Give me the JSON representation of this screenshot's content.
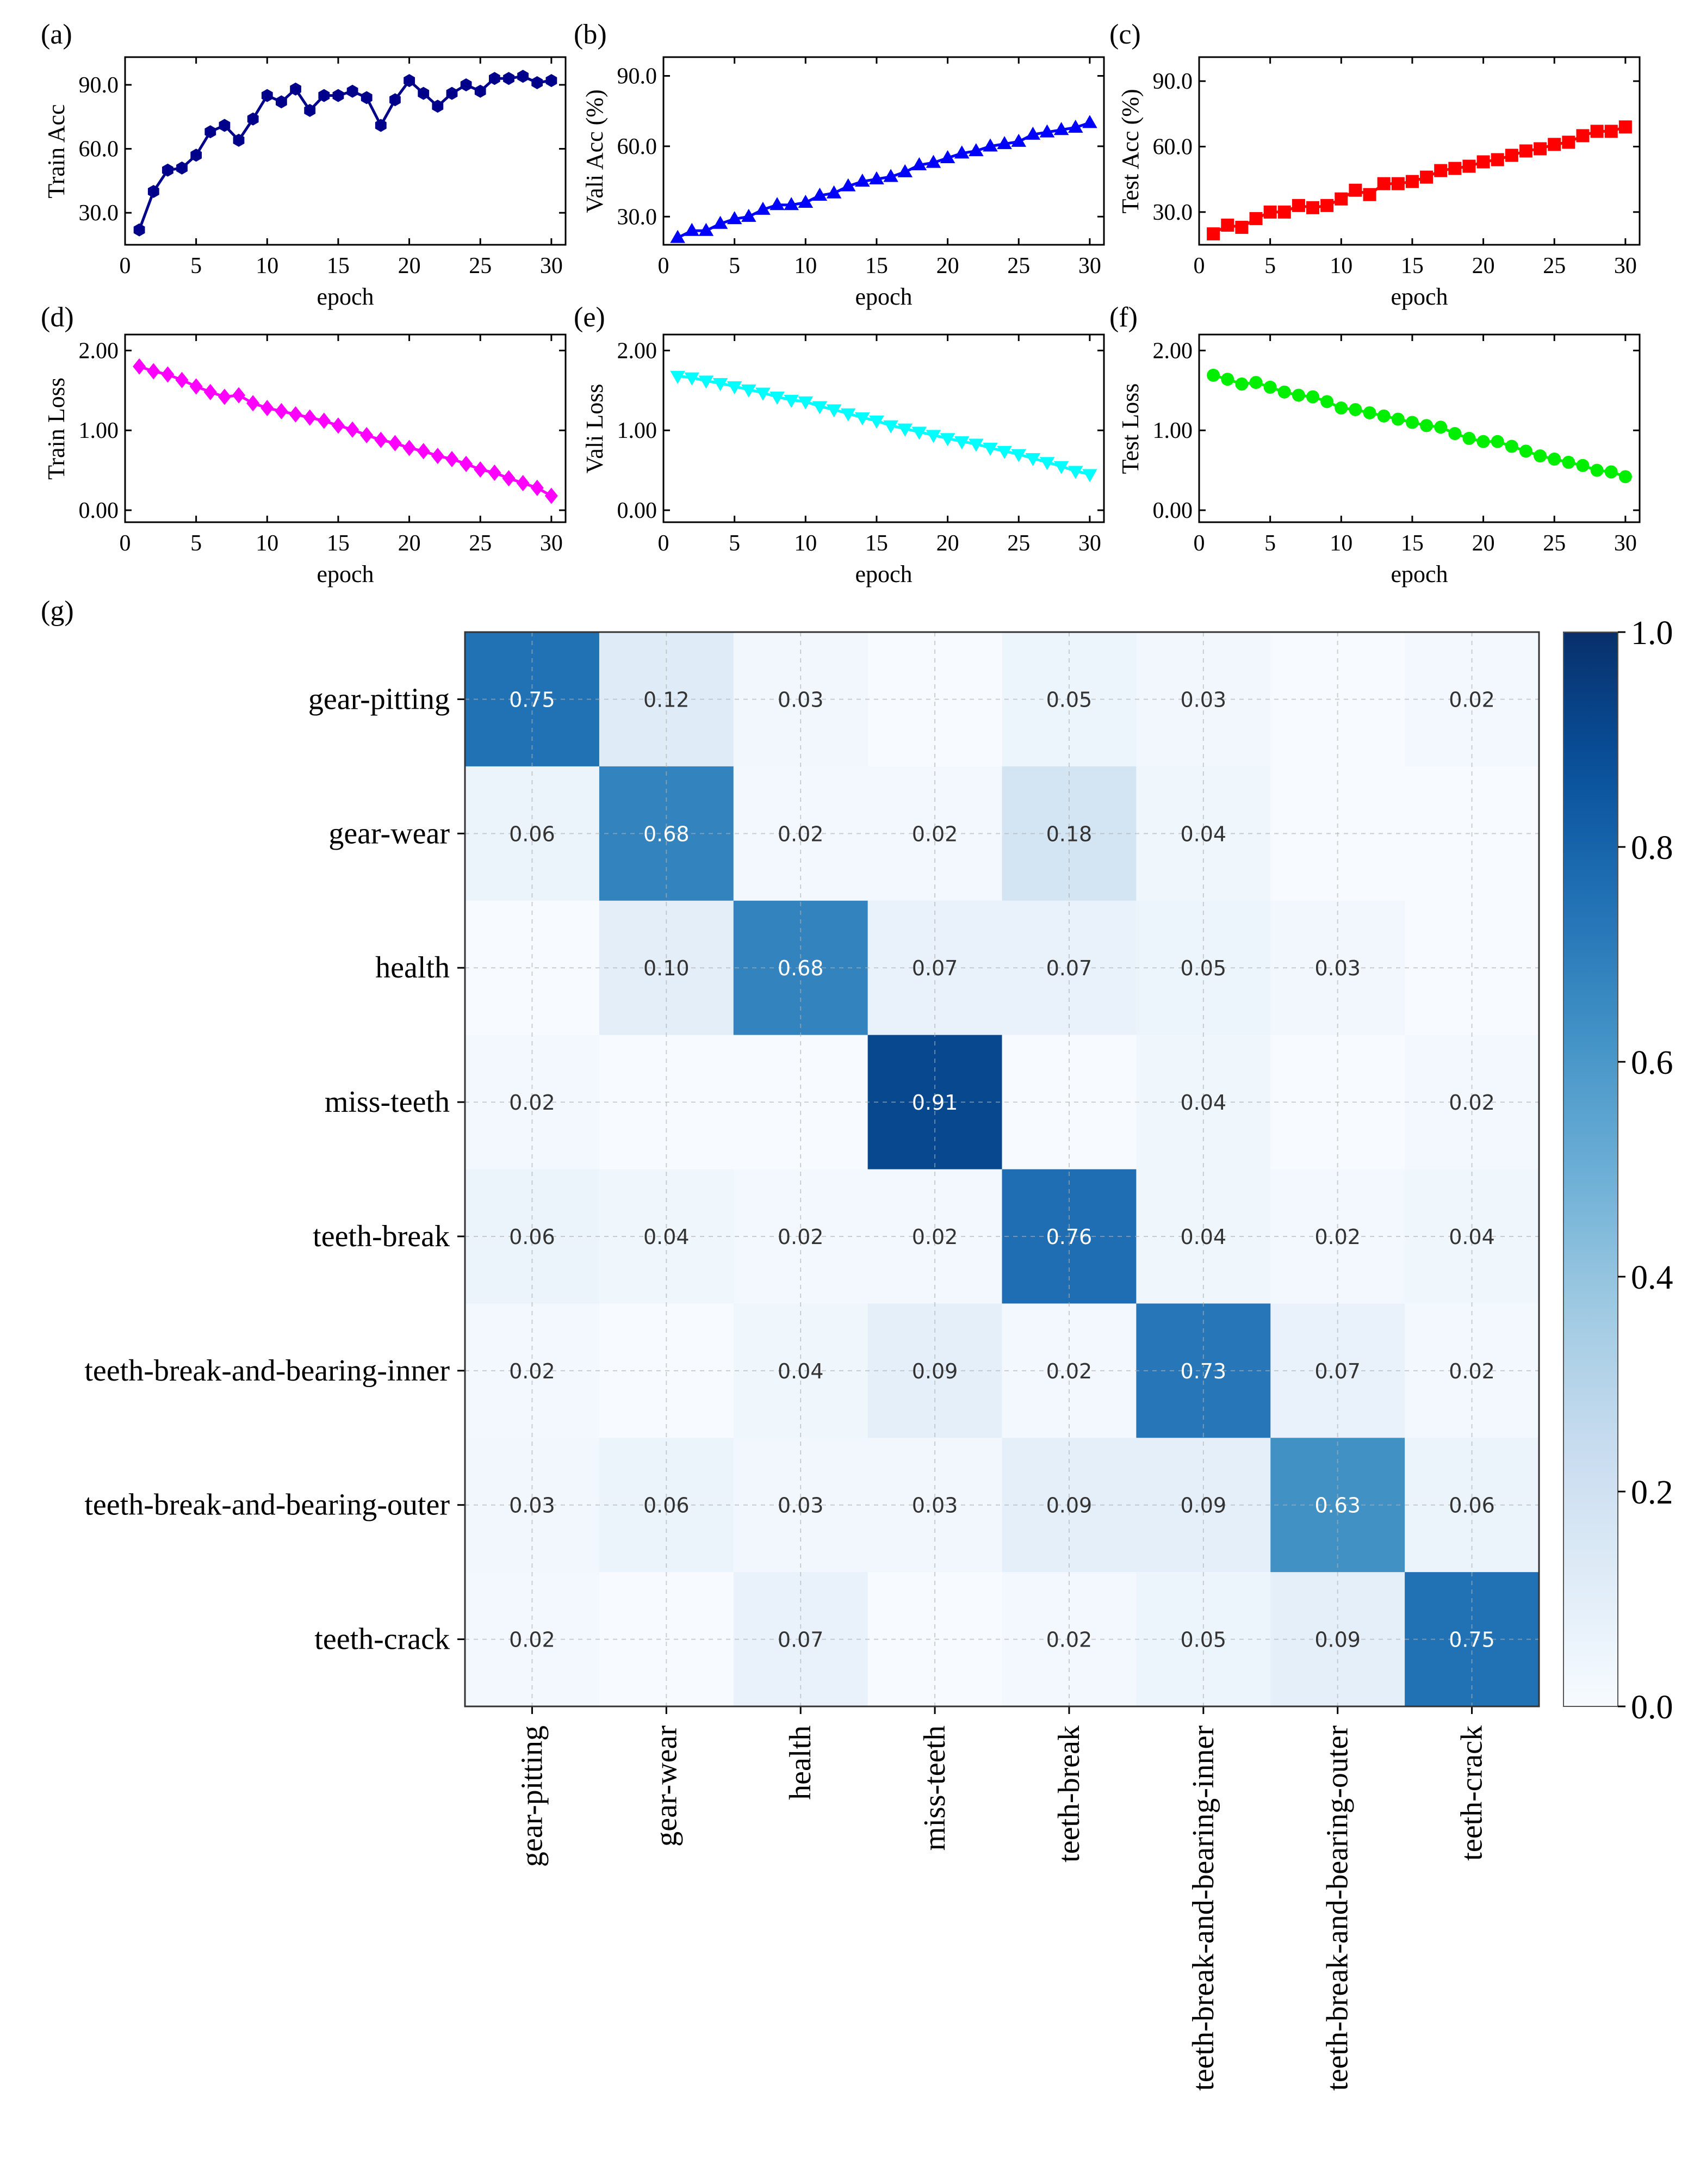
{
  "chart_data": [
    {
      "id": "a",
      "panel_label": "(a)",
      "type": "line",
      "title": "",
      "xlabel": "epoch",
      "ylabel": "Train Acc",
      "xlim": [
        0,
        31
      ],
      "ylim": [
        15,
        103
      ],
      "xticks": [
        0,
        5,
        10,
        15,
        20,
        25,
        30
      ],
      "yticks": [
        30.0,
        60.0,
        90.0
      ],
      "yticks_labels": [
        "30.0",
        "60.0",
        "90.0"
      ],
      "marker": "hexagon",
      "color": "#00008b",
      "series": [
        {
          "name": "Train Acc",
          "x": [
            1,
            2,
            3,
            4,
            5,
            6,
            7,
            8,
            9,
            10,
            11,
            12,
            13,
            14,
            15,
            16,
            17,
            18,
            19,
            20,
            21,
            22,
            23,
            24,
            25,
            26,
            27,
            28,
            29,
            30
          ],
          "y": [
            22,
            40,
            50,
            51,
            57,
            68,
            71,
            64,
            74,
            85,
            82,
            88,
            78,
            85,
            85,
            87,
            84,
            71,
            83,
            92,
            86,
            80,
            86,
            90,
            87,
            93,
            93,
            94,
            91,
            92
          ]
        }
      ]
    },
    {
      "id": "b",
      "panel_label": "(b)",
      "type": "line",
      "title": "",
      "xlabel": "epoch",
      "ylabel": "Vali Acc (%)",
      "xlim": [
        0,
        31
      ],
      "ylim": [
        18,
        98
      ],
      "xticks": [
        0,
        5,
        10,
        15,
        20,
        25,
        30
      ],
      "yticks": [
        30.0,
        60.0,
        90.0
      ],
      "yticks_labels": [
        "30.0",
        "60.0",
        "90.0"
      ],
      "marker": "triangle-up",
      "color": "#0000ff",
      "series": [
        {
          "name": "Vali Acc",
          "x": [
            1,
            2,
            3,
            4,
            5,
            6,
            7,
            8,
            9,
            10,
            11,
            12,
            13,
            14,
            15,
            16,
            17,
            18,
            19,
            20,
            21,
            22,
            23,
            24,
            25,
            26,
            27,
            28,
            29,
            30
          ],
          "y": [
            21,
            24,
            24,
            27,
            29,
            30,
            33,
            35,
            35,
            36,
            39,
            40,
            43,
            45,
            46,
            47,
            49,
            52,
            53,
            55,
            57,
            58,
            60,
            61,
            62,
            65,
            66,
            67,
            68,
            70
          ]
        }
      ]
    },
    {
      "id": "c",
      "panel_label": "(c)",
      "type": "line",
      "title": "",
      "xlabel": "epoch",
      "ylabel": "Test Acc (%)",
      "xlim": [
        0,
        31
      ],
      "ylim": [
        15,
        101
      ],
      "xticks": [
        0,
        5,
        10,
        15,
        20,
        25,
        30
      ],
      "yticks": [
        30.0,
        60.0,
        90.0
      ],
      "yticks_labels": [
        "30.0",
        "60.0",
        "90.0"
      ],
      "marker": "square",
      "color": "#ff0000",
      "series": [
        {
          "name": "Test Acc",
          "x": [
            1,
            2,
            3,
            4,
            5,
            6,
            7,
            8,
            9,
            10,
            11,
            12,
            13,
            14,
            15,
            16,
            17,
            18,
            19,
            20,
            21,
            22,
            23,
            24,
            25,
            26,
            27,
            28,
            29,
            30
          ],
          "y": [
            20,
            24,
            23,
            27,
            30,
            30,
            33,
            32,
            33,
            36,
            40,
            38,
            43,
            43,
            44,
            46,
            49,
            50,
            51,
            53,
            54,
            56,
            58,
            59,
            61,
            62,
            65,
            67,
            67,
            69
          ]
        }
      ]
    },
    {
      "id": "d",
      "panel_label": "(d)",
      "type": "line",
      "title": "",
      "xlabel": "epoch",
      "ylabel": "Train Loss",
      "xlim": [
        0,
        31
      ],
      "ylim": [
        -0.15,
        2.2
      ],
      "xticks": [
        0,
        5,
        10,
        15,
        20,
        25,
        30
      ],
      "yticks": [
        0.0,
        1.0,
        2.0
      ],
      "yticks_labels": [
        "0.00",
        "1.00",
        "2.00"
      ],
      "marker": "diamond",
      "color": "#ff00ff",
      "series": [
        {
          "name": "Train Loss",
          "x": [
            1,
            2,
            3,
            4,
            5,
            6,
            7,
            8,
            9,
            10,
            11,
            12,
            13,
            14,
            15,
            16,
            17,
            18,
            19,
            20,
            21,
            22,
            23,
            24,
            25,
            26,
            27,
            28,
            29,
            30
          ],
          "y": [
            1.8,
            1.74,
            1.7,
            1.63,
            1.55,
            1.48,
            1.42,
            1.44,
            1.34,
            1.28,
            1.24,
            1.2,
            1.16,
            1.12,
            1.06,
            1.01,
            0.94,
            0.88,
            0.84,
            0.78,
            0.74,
            0.68,
            0.64,
            0.58,
            0.51,
            0.47,
            0.4,
            0.34,
            0.28,
            0.18
          ]
        }
      ]
    },
    {
      "id": "e",
      "panel_label": "(e)",
      "type": "line",
      "title": "",
      "xlabel": "epoch",
      "ylabel": "Vali Loss",
      "xlim": [
        0,
        31
      ],
      "ylim": [
        -0.15,
        2.2
      ],
      "xticks": [
        0,
        5,
        10,
        15,
        20,
        25,
        30
      ],
      "yticks": [
        0.0,
        1.0,
        2.0
      ],
      "yticks_labels": [
        "0.00",
        "1.00",
        "2.00"
      ],
      "marker": "triangle-down",
      "color": "#00ffff",
      "series": [
        {
          "name": "Vali Loss",
          "x": [
            1,
            2,
            3,
            4,
            5,
            6,
            7,
            8,
            9,
            10,
            11,
            12,
            13,
            14,
            15,
            16,
            17,
            18,
            19,
            20,
            21,
            22,
            23,
            24,
            25,
            26,
            27,
            28,
            29,
            30
          ],
          "y": [
            1.68,
            1.66,
            1.62,
            1.59,
            1.55,
            1.51,
            1.47,
            1.42,
            1.38,
            1.36,
            1.3,
            1.26,
            1.21,
            1.16,
            1.12,
            1.06,
            1.02,
            0.98,
            0.94,
            0.9,
            0.86,
            0.83,
            0.78,
            0.74,
            0.7,
            0.65,
            0.6,
            0.55,
            0.49,
            0.45
          ]
        }
      ]
    },
    {
      "id": "f",
      "panel_label": "(f)",
      "type": "line",
      "title": "",
      "xlabel": "epoch",
      "ylabel": "Test Loss",
      "xlim": [
        0,
        31
      ],
      "ylim": [
        -0.15,
        2.2
      ],
      "xticks": [
        0,
        5,
        10,
        15,
        20,
        25,
        30
      ],
      "yticks": [
        0.0,
        1.0,
        2.0
      ],
      "yticks_labels": [
        "0.00",
        "1.00",
        "2.00"
      ],
      "marker": "circle",
      "color": "#00ee00",
      "series": [
        {
          "name": "Test Loss",
          "x": [
            1,
            2,
            3,
            4,
            5,
            6,
            7,
            8,
            9,
            10,
            11,
            12,
            13,
            14,
            15,
            16,
            17,
            18,
            19,
            20,
            21,
            22,
            23,
            24,
            25,
            26,
            27,
            28,
            29,
            30
          ],
          "y": [
            1.69,
            1.64,
            1.58,
            1.6,
            1.54,
            1.48,
            1.44,
            1.42,
            1.36,
            1.28,
            1.26,
            1.22,
            1.18,
            1.14,
            1.1,
            1.06,
            1.04,
            0.96,
            0.9,
            0.86,
            0.86,
            0.8,
            0.74,
            0.68,
            0.64,
            0.6,
            0.56,
            0.5,
            0.48,
            0.42
          ]
        }
      ]
    },
    {
      "id": "g",
      "panel_label": "(g)",
      "type": "heatmap",
      "title": "",
      "xlabel": "",
      "ylabel": "",
      "categories": [
        "gear-pitting",
        "gear-wear",
        "health",
        "miss-teeth",
        "teeth-break",
        "teeth-break-and-bearing-inner",
        "teeth-break-and-bearing-outer",
        "teeth-crack"
      ],
      "values": [
        [
          0.75,
          0.12,
          0.03,
          0.0,
          0.05,
          0.03,
          0.0,
          0.02
        ],
        [
          0.06,
          0.68,
          0.02,
          0.02,
          0.18,
          0.04,
          0.0,
          0.0
        ],
        [
          0.0,
          0.1,
          0.68,
          0.07,
          0.07,
          0.05,
          0.03,
          0.0
        ],
        [
          0.02,
          0.0,
          0.0,
          0.91,
          0.0,
          0.04,
          0.0,
          0.02
        ],
        [
          0.06,
          0.04,
          0.02,
          0.02,
          0.76,
          0.04,
          0.02,
          0.04
        ],
        [
          0.02,
          0.0,
          0.04,
          0.09,
          0.02,
          0.73,
          0.07,
          0.02
        ],
        [
          0.03,
          0.06,
          0.03,
          0.03,
          0.09,
          0.09,
          0.63,
          0.06
        ],
        [
          0.02,
          0.0,
          0.07,
          0.0,
          0.02,
          0.05,
          0.09,
          0.75
        ]
      ],
      "colorbar": {
        "range": [
          0.0,
          1.0
        ],
        "ticks": [
          "0.0",
          "0.2",
          "0.4",
          "0.6",
          "0.8",
          "1.0"
        ],
        "colormap": "Blues"
      },
      "grid": true
    }
  ]
}
